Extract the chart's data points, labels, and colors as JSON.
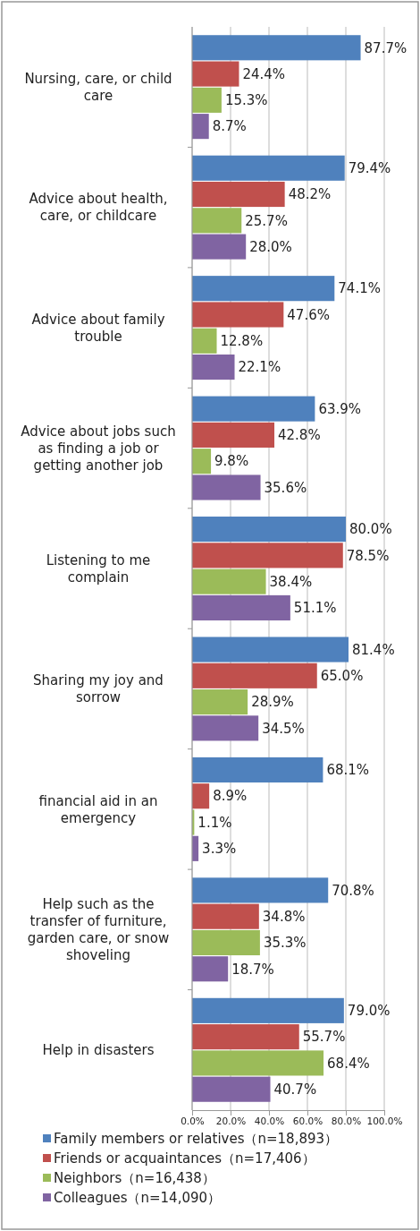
{
  "chart_data": {
    "type": "bar",
    "orientation": "horizontal",
    "categories": [
      "Nursing, care, or child care",
      "Advice about health, care, or childcare",
      "Advice about family trouble",
      "Advice about jobs such as finding a job or getting another job",
      "Listening to me complain",
      "Sharing my joy and sorrow",
      "financial aid in an emergency",
      "Help such as the transfer of furniture, garden care, or snow shoveling",
      "Help in disasters"
    ],
    "series": [
      {
        "name": "Family members or relatives（n=18,893）",
        "color": "#4f81bd",
        "values": [
          87.7,
          79.4,
          74.1,
          63.9,
          80.0,
          81.4,
          68.1,
          70.8,
          79.0
        ],
        "value_labels": [
          "87.7%",
          "79.4%",
          "74.1%",
          "63.9%",
          "80.0%",
          "81.4%",
          "68.1%",
          "70.8%",
          "79.0%"
        ]
      },
      {
        "name": "Friends or acquaintances（n=17,406）",
        "color": "#c0504d",
        "values": [
          24.4,
          48.2,
          47.6,
          42.8,
          78.5,
          65.0,
          8.9,
          34.8,
          55.7
        ],
        "value_labels": [
          "24.4%",
          "48.2%",
          "47.6%",
          "42.8%",
          "78.5%",
          "65.0%",
          "8.9%",
          "34.8%",
          "55.7%"
        ]
      },
      {
        "name": "Neighbors（n=16,438）",
        "color": "#9bbb59",
        "values": [
          15.3,
          25.7,
          12.8,
          9.8,
          38.4,
          28.9,
          1.1,
          35.3,
          68.4
        ],
        "value_labels": [
          "15.3%",
          "25.7%",
          "12.8%",
          "9.8%",
          "38.4%",
          "28.9%",
          "1.1%",
          "35.3%",
          "68.4%"
        ]
      },
      {
        "name": "Colleagues（n=14,090）",
        "color": "#8064a2",
        "values": [
          8.7,
          28.0,
          22.1,
          35.6,
          51.1,
          34.5,
          3.3,
          18.7,
          40.7
        ],
        "value_labels": [
          "8.7%",
          "28.0%",
          "22.1%",
          "35.6%",
          "51.1%",
          "34.5%",
          "3.3%",
          "18.7%",
          "40.7%"
        ]
      }
    ],
    "xlim": [
      0,
      100
    ],
    "xticks": [
      {
        "value": 0,
        "label": "0.0%"
      },
      {
        "value": 20,
        "label": "20.0%"
      },
      {
        "value": 40,
        "label": "40.0%"
      },
      {
        "value": 60,
        "label": "60.0%"
      },
      {
        "value": 80,
        "label": "80.0%"
      },
      {
        "value": 100,
        "label": "100.0%"
      }
    ],
    "grid": "x",
    "legend": "bottom"
  }
}
